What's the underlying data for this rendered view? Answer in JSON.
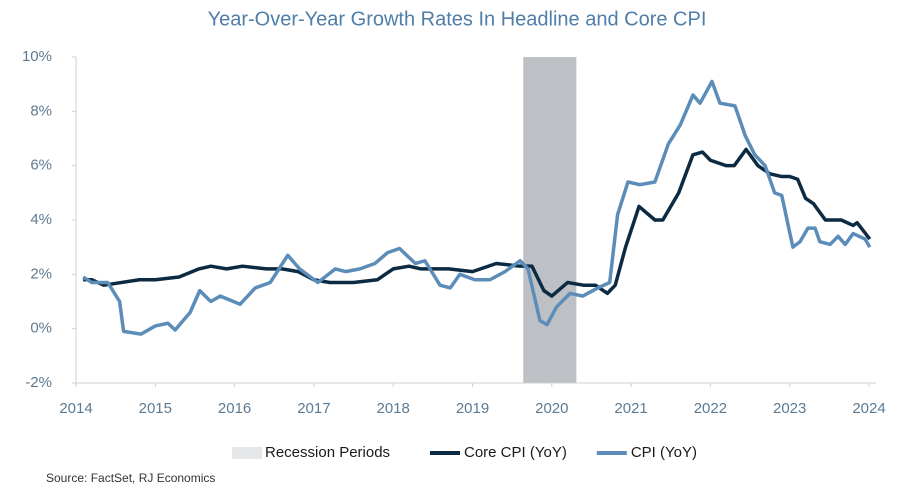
{
  "chart_data": {
    "type": "line",
    "title": "Year-Over-Year Growth Rates In Headline and Core CPI",
    "source": "Source: FactSet, RJ Economics",
    "xlim": [
      2014,
      2024
    ],
    "xticks": [
      2014,
      2015,
      2016,
      2017,
      2018,
      2019,
      2020,
      2021,
      2022,
      2023,
      2024
    ],
    "ylim": [
      -2,
      10
    ],
    "yticks": [
      {
        "value": -2,
        "label": "-2%"
      },
      {
        "value": 0,
        "label": "0%"
      },
      {
        "value": 2,
        "label": "2%"
      },
      {
        "value": 4,
        "label": "4%"
      },
      {
        "value": 6,
        "label": "6%"
      },
      {
        "value": 8,
        "label": "8%"
      },
      {
        "value": 10,
        "label": "10%"
      }
    ],
    "recession": {
      "name": "Recession Periods",
      "color": "#bdc1c5",
      "start": 2019.64,
      "end": 2020.31
    },
    "series": [
      {
        "name": "Core CPI (YoY)",
        "color": "#0c2a42",
        "x": [
          2014.09,
          2014.2,
          2014.35,
          2014.8,
          2015.0,
          2015.3,
          2015.55,
          2015.7,
          2015.9,
          2016.1,
          2016.4,
          2016.6,
          2016.8,
          2017.0,
          2017.2,
          2017.5,
          2017.8,
          2018.0,
          2018.2,
          2018.35,
          2018.7,
          2019.0,
          2019.3,
          2019.6,
          2019.75,
          2019.9,
          2020.0,
          2020.2,
          2020.4,
          2020.55,
          2020.7,
          2020.8,
          2020.93,
          2021.1,
          2021.3,
          2021.4,
          2021.6,
          2021.78,
          2021.9,
          2022.0,
          2022.2,
          2022.3,
          2022.45,
          2022.6,
          2022.75,
          2022.9,
          2023.0,
          2023.1,
          2023.2,
          2023.3,
          2023.45,
          2023.65,
          2023.8,
          2023.85,
          2024.01
        ],
        "values": [
          1.8,
          1.8,
          1.6,
          1.8,
          1.8,
          1.9,
          2.2,
          2.3,
          2.2,
          2.3,
          2.2,
          2.2,
          2.1,
          1.8,
          1.7,
          1.7,
          1.8,
          2.2,
          2.3,
          2.2,
          2.2,
          2.1,
          2.4,
          2.3,
          2.3,
          1.4,
          1.2,
          1.7,
          1.6,
          1.6,
          1.3,
          1.6,
          3.0,
          4.5,
          4.0,
          4.0,
          5.0,
          6.4,
          6.5,
          6.2,
          6.0,
          6.0,
          6.6,
          6.0,
          5.7,
          5.6,
          5.6,
          5.5,
          4.8,
          4.6,
          4.0,
          4.0,
          3.8,
          3.9,
          3.3
        ]
      },
      {
        "name": "CPI (YoY)",
        "color": "#5b8db8",
        "x": [
          2014.09,
          2014.2,
          2014.4,
          2014.55,
          2014.6,
          2014.82,
          2015.0,
          2015.16,
          2015.25,
          2015.44,
          2015.56,
          2015.7,
          2015.82,
          2016.07,
          2016.26,
          2016.45,
          2016.67,
          2016.82,
          2017.05,
          2017.27,
          2017.4,
          2017.58,
          2017.77,
          2017.93,
          2018.08,
          2018.28,
          2018.4,
          2018.59,
          2018.72,
          2018.84,
          2019.03,
          2019.22,
          2019.41,
          2019.6,
          2019.7,
          2019.85,
          2019.94,
          2020.06,
          2020.23,
          2020.39,
          2020.58,
          2020.73,
          2020.83,
          2020.96,
          2021.11,
          2021.3,
          2021.47,
          2021.62,
          2021.78,
          2021.87,
          2022.02,
          2022.12,
          2022.31,
          2022.44,
          2022.56,
          2022.69,
          2022.81,
          2022.9,
          2023.04,
          2023.13,
          2023.23,
          2023.32,
          2023.38,
          2023.51,
          2023.61,
          2023.7,
          2023.8,
          2023.95,
          2024.01
        ],
        "values": [
          1.9,
          1.7,
          1.7,
          1.0,
          -0.1,
          -0.2,
          0.1,
          0.2,
          -0.05,
          0.6,
          1.4,
          1.0,
          1.2,
          0.9,
          1.5,
          1.7,
          2.7,
          2.2,
          1.7,
          2.2,
          2.1,
          2.2,
          2.4,
          2.8,
          2.95,
          2.4,
          2.5,
          1.6,
          1.5,
          2.0,
          1.8,
          1.8,
          2.1,
          2.5,
          2.2,
          0.3,
          0.15,
          0.8,
          1.3,
          1.2,
          1.5,
          1.7,
          4.2,
          5.4,
          5.3,
          5.4,
          6.8,
          7.5,
          8.6,
          8.3,
          9.1,
          8.3,
          8.2,
          7.1,
          6.4,
          6.0,
          5.0,
          4.9,
          3.0,
          3.2,
          3.7,
          3.7,
          3.2,
          3.1,
          3.4,
          3.1,
          3.5,
          3.3,
          3.0
        ]
      }
    ]
  }
}
